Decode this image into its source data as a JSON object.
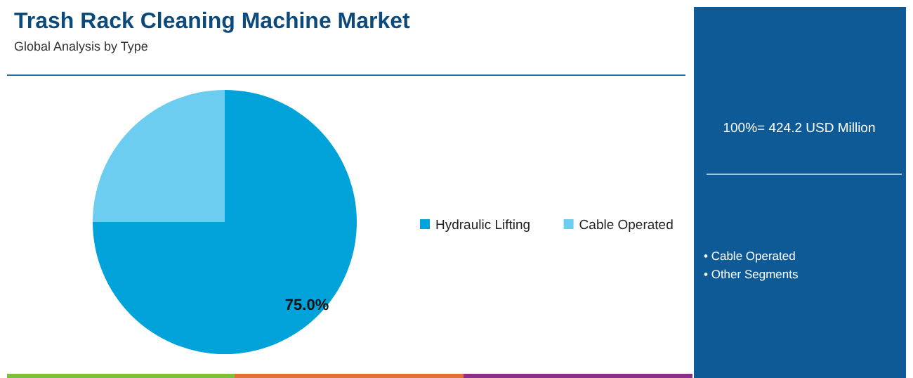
{
  "chart_data": {
    "type": "pie",
    "title": "Trash Rack Cleaning Machine Market",
    "subtitle": "Global Analysis by Type",
    "categories": [
      "Hydraulic Lifting",
      "Cable Operated"
    ],
    "values": [
      75,
      25
    ],
    "colors": [
      "#00a3d9",
      "#6dcdf0"
    ],
    "value_labels": [
      "75.0%",
      null
    ],
    "legend": "right",
    "annotations": [
      "100%= 424.2 USD Million",
      "• Cable Operated",
      "• Other Segments"
    ]
  }
}
